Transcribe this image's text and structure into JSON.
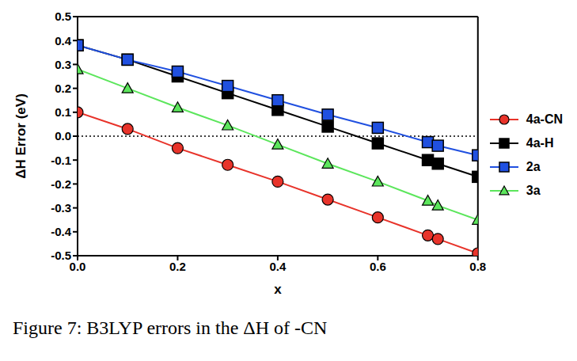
{
  "chart_data": {
    "type": "line",
    "caption": "Figure 7: B3LYP errors in the ΔH of -CN",
    "x_label": "x",
    "y_label": "ΔH Error (eV)",
    "x": [
      0,
      0.1,
      0.2,
      0.3,
      0.4,
      0.5,
      0.6,
      0.7,
      0.72,
      0.8
    ],
    "series": [
      {
        "name": "4a-CN",
        "color": "#e8332a",
        "marker": "circle",
        "values": [
          0.1,
          0.03,
          -0.05,
          -0.12,
          -0.19,
          -0.265,
          -0.34,
          -0.415,
          -0.43,
          -0.49
        ]
      },
      {
        "name": "4a-H",
        "color": "#000000",
        "marker": "square",
        "values": [
          0.38,
          0.32,
          0.25,
          0.18,
          0.11,
          0.04,
          -0.03,
          -0.1,
          -0.115,
          -0.17
        ]
      },
      {
        "name": "2a",
        "color": "#2050e0",
        "marker": "square",
        "values": [
          0.38,
          0.32,
          0.27,
          0.21,
          0.15,
          0.09,
          0.035,
          -0.025,
          -0.04,
          -0.08
        ]
      },
      {
        "name": "3a",
        "color": "#5ce65c",
        "marker": "triangle",
        "values": [
          0.28,
          0.2,
          0.12,
          0.045,
          -0.035,
          -0.115,
          -0.19,
          -0.27,
          -0.29,
          -0.35
        ]
      }
    ],
    "xlim": [
      0,
      0.8
    ],
    "xticks": [
      {
        "value": 0,
        "label": "0.0"
      },
      0.2,
      0.4,
      0.6,
      0.8
    ],
    "ylim": [
      -0.5,
      0.5
    ],
    "yticks": [
      -0.5,
      -0.4,
      -0.3,
      -0.2,
      -0.1,
      {
        "value": 0,
        "label": "0.0"
      },
      0.1,
      0.2,
      0.3,
      0.4,
      0.5
    ],
    "hlines": [
      0
    ],
    "legend": "right",
    "grid": false
  }
}
